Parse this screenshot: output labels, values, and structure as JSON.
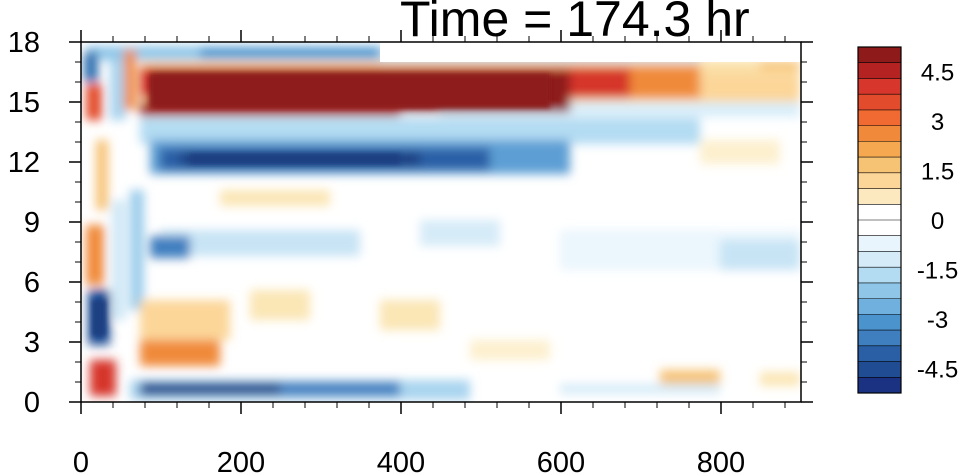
{
  "chart_data": {
    "type": "heatmap",
    "title": "Time = 174.3 hr",
    "xlabel": "",
    "ylabel": "",
    "xlim": [
      0,
      900
    ],
    "ylim": [
      0,
      18
    ],
    "x_ticks": [
      0,
      200,
      400,
      600,
      800
    ],
    "y_ticks": [
      0,
      3,
      6,
      9,
      12,
      15,
      18
    ],
    "colorbar": {
      "levels": [
        -5.25,
        -4.75,
        -4.25,
        -3.75,
        -3.25,
        -2.75,
        -2.25,
        -1.75,
        -1.25,
        -0.75,
        -0.25,
        0.25,
        0.75,
        1.25,
        1.75,
        2.25,
        2.75,
        3.25,
        3.75,
        4.25,
        4.75,
        5.25
      ],
      "labels": [
        "4.5",
        "3",
        "1.5",
        "0",
        "-1.5",
        "-3",
        "-4.5"
      ],
      "label_values": [
        4.5,
        3,
        1.5,
        0,
        -1.5,
        -3,
        -4.5
      ]
    },
    "features": [
      {
        "name": "upper positive band",
        "x": [
          80,
          640
        ],
        "y": [
          14.3,
          16.5
        ],
        "value": 5.0
      },
      {
        "name": "negative band below",
        "x": [
          90,
          560
        ],
        "y": [
          11.5,
          13.2
        ],
        "value": -4.0
      },
      {
        "name": "near-surface negative band",
        "x": [
          80,
          420
        ],
        "y": [
          0.2,
          0.9
        ],
        "value": -4.5
      },
      {
        "name": "lower-left negative cell",
        "x": [
          10,
          60
        ],
        "y": [
          3.5,
          5.0
        ],
        "value": -4.5
      }
    ]
  }
}
